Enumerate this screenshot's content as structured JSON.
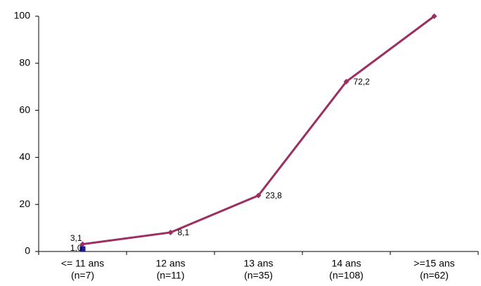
{
  "chart_data": {
    "type": "line",
    "categories": [
      "<= 11 ans",
      "12 ans",
      "13 ans",
      "14 ans",
      ">=15 ans"
    ],
    "category_notes": [
      "(n=7)",
      "(n=11)",
      "(n=35)",
      "(n=108)",
      "(n=62)"
    ],
    "series": [
      {
        "color": "#9c2f62",
        "marker": "diamond",
        "values": [
          3.1,
          8.1,
          23.8,
          72.2,
          100
        ],
        "value_labels": [
          "3,1",
          "8,1",
          "23,8",
          "72,2",
          null
        ]
      },
      {
        "color": "#1c1c8c",
        "marker": "square",
        "values": [
          1.0,
          null,
          null,
          null,
          null
        ],
        "value_labels": [
          "1,0",
          null,
          null,
          null,
          null
        ]
      }
    ],
    "ylim": [
      0,
      100
    ],
    "yticks": [
      0,
      20,
      40,
      60,
      80,
      100
    ],
    "grid": false
  }
}
